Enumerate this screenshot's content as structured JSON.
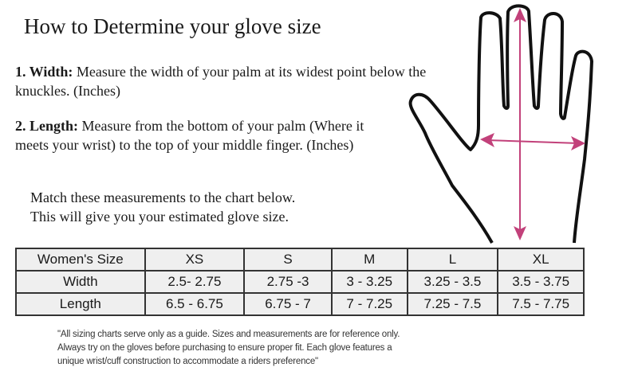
{
  "title": "How to Determine your glove size",
  "width": {
    "label": "1. Width:",
    "text": " Measure the width of your palm at its widest point below the knuckles. (Inches)"
  },
  "length": {
    "label": "2. Length:",
    "text": " Measure from the bottom of your palm (Where it meets your wrist) to the top of your middle finger. (Inches)"
  },
  "match": [
    "Match these measurements to the chart below.",
    "This will give you your estimated glove size."
  ],
  "arrow_color": "#c2417a",
  "table": {
    "header": [
      "Women's Size",
      "XS",
      "S",
      "M",
      "L",
      "XL"
    ],
    "rows": [
      [
        "Width",
        "2.5- 2.75",
        "2.75 -3",
        "3 - 3.25",
        "3.25 - 3.5",
        "3.5 - 3.75"
      ],
      [
        "Length",
        "6.5 - 6.75",
        "6.75 - 7",
        "7 - 7.25",
        "7.25 - 7.5",
        "7.5 - 7.75"
      ]
    ]
  },
  "note": [
    "\"All sizing charts serve only as a guide.  Sizes and measurements are for reference only.",
    "Always try on the gloves before purchasing to ensure proper fit.  Each glove features a",
    "unique wrist/cuff construction to accommodate a riders preference\""
  ]
}
